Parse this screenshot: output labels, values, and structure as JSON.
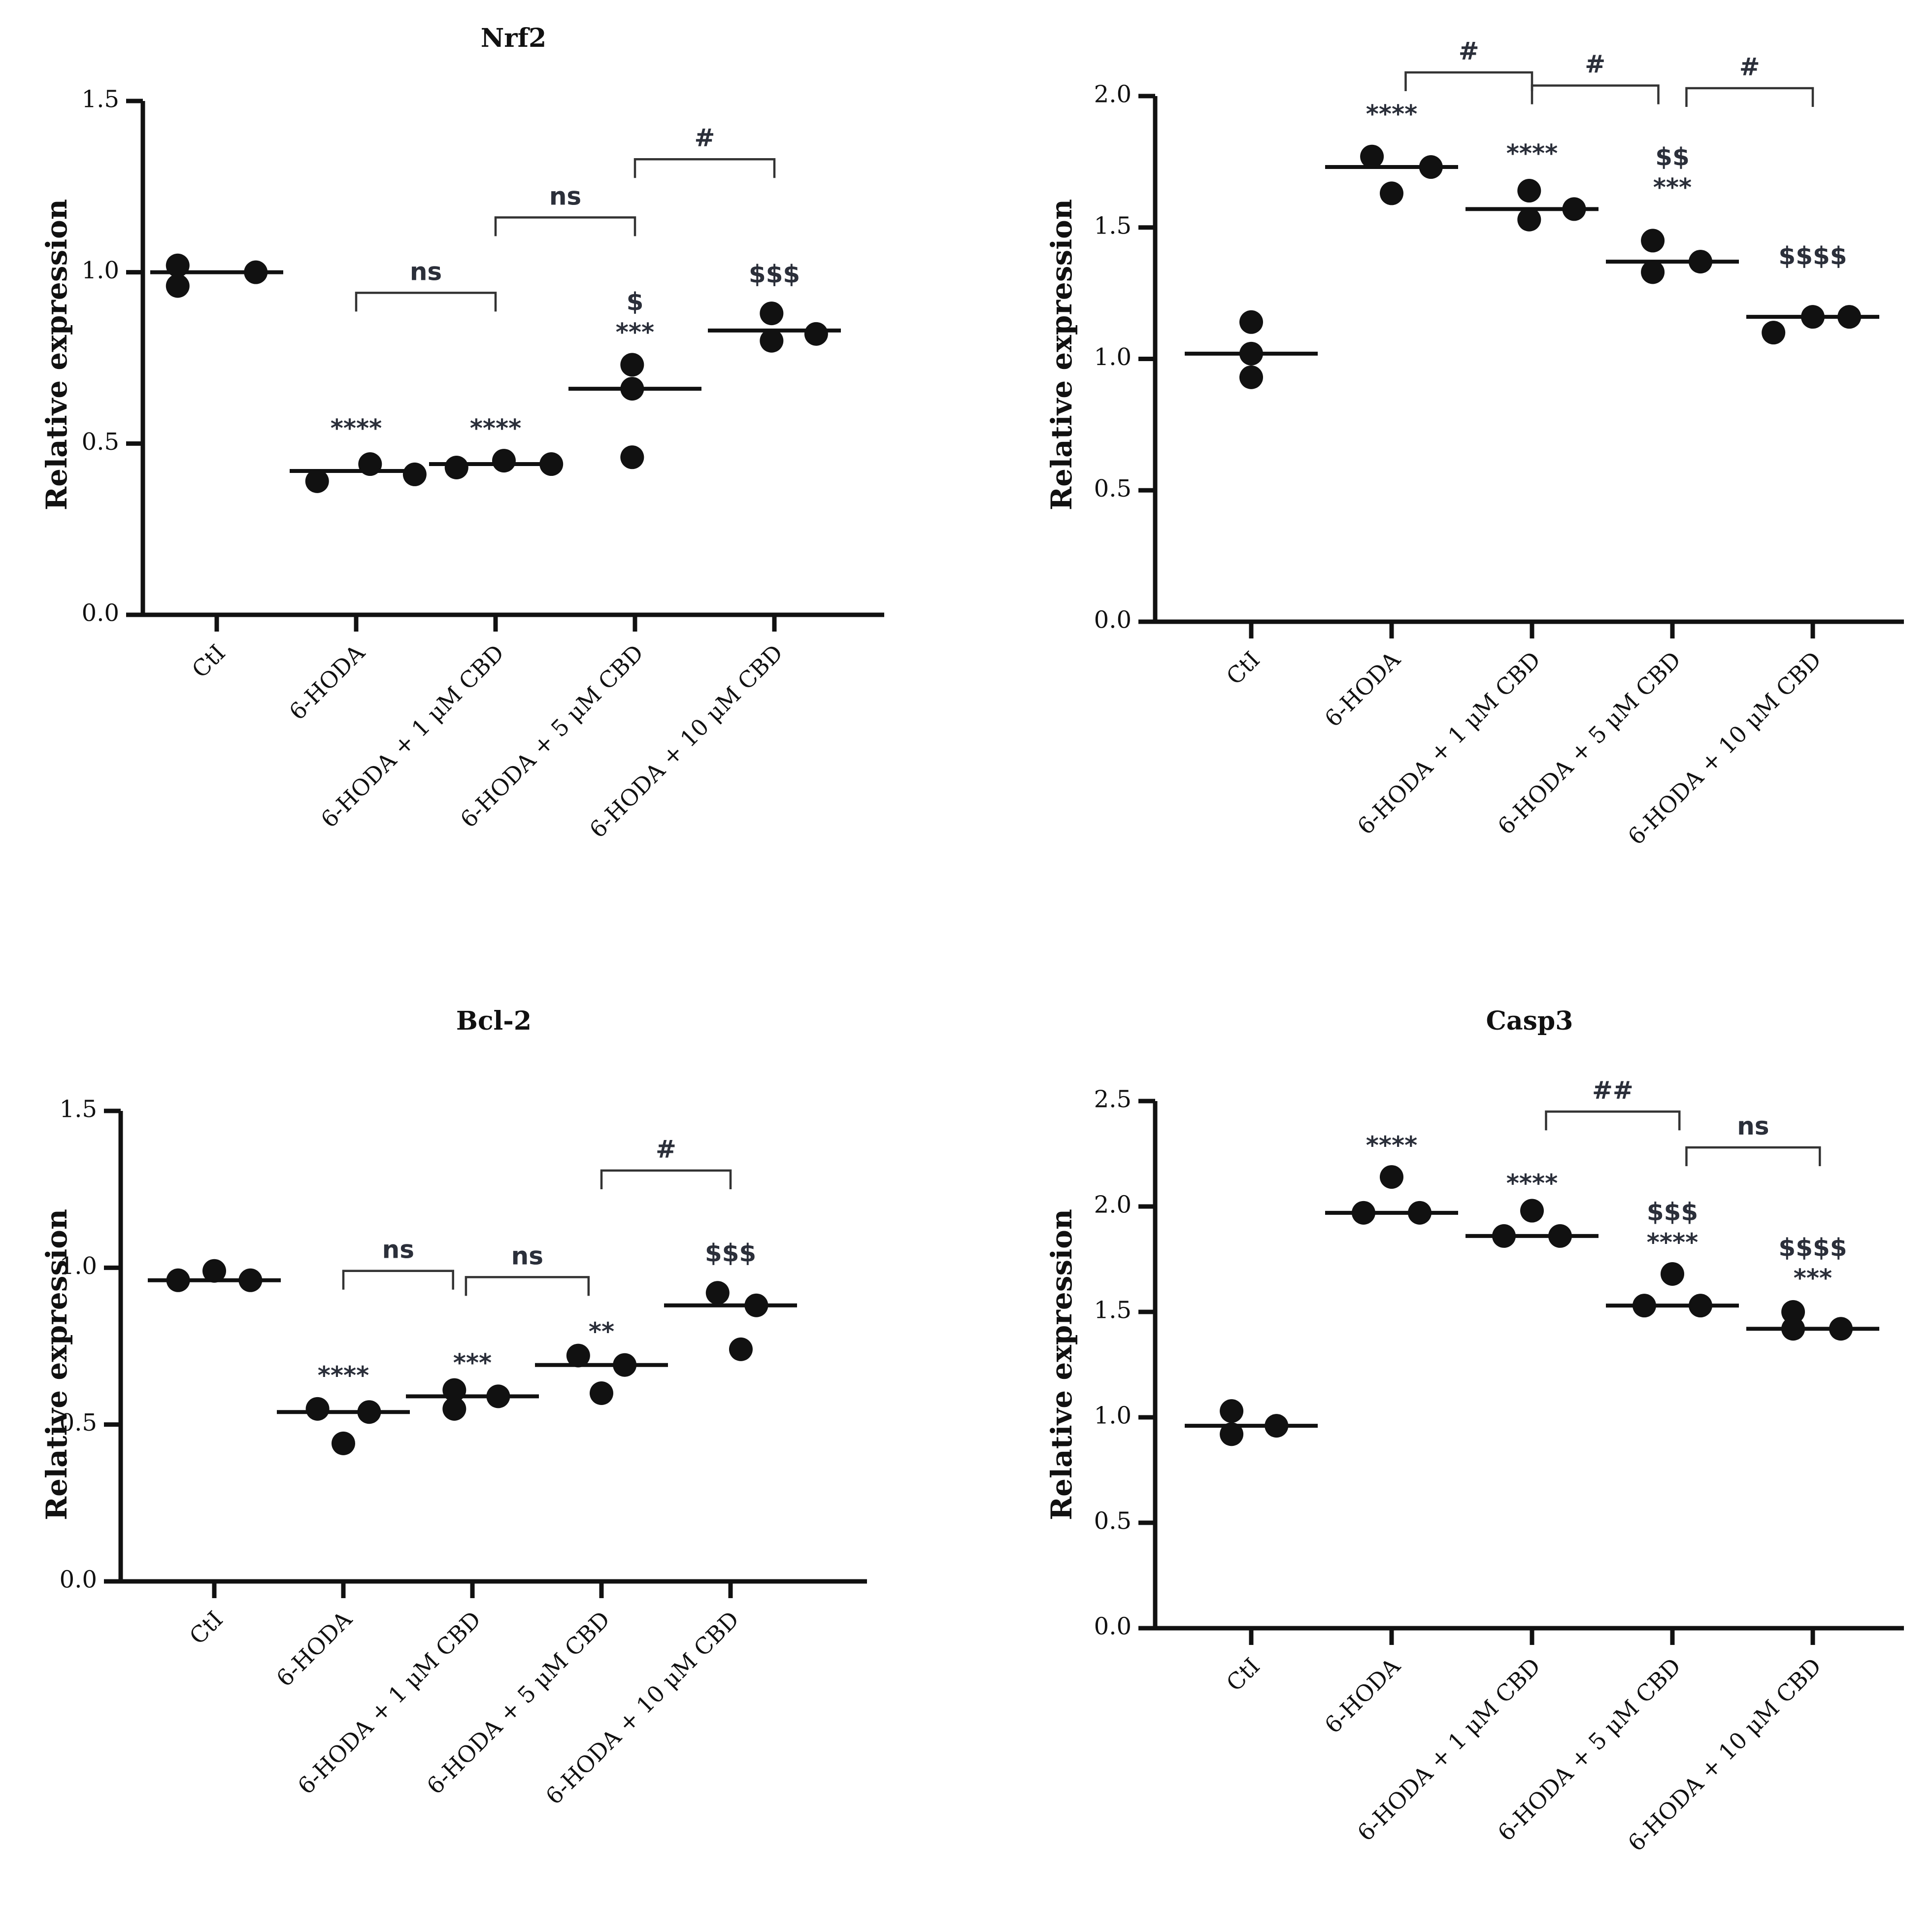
{
  "panels": [
    {
      "title": "Nrf2",
      "ylabel": "Relative expression",
      "yticks": [
        "0.0",
        "0.5",
        "1.0",
        "1.5"
      ],
      "ylim": [
        0,
        1.5
      ],
      "categories": [
        "CtI",
        "6-HODA",
        "6-HODA + 1 μM CBD",
        "6-HODA + 5 μM CBD",
        "6-HODA + 10 μM CBD"
      ],
      "means": [
        1.0,
        0.42,
        0.44,
        0.66,
        0.83
      ],
      "points": [
        [
          0.96,
          1.02,
          1.0
        ],
        [
          0.39,
          0.44,
          0.41
        ],
        [
          0.43,
          0.45,
          0.44
        ],
        [
          0.46,
          0.73,
          0.66
        ],
        [
          0.8,
          0.88,
          0.82
        ]
      ],
      "point_offsets": [
        [
          -0.28,
          -0.28,
          0.28
        ],
        [
          -0.28,
          0.1,
          0.42
        ],
        [
          -0.28,
          0.06,
          0.4
        ],
        [
          -0.02,
          -0.02,
          -0.02
        ],
        [
          -0.02,
          -0.02,
          0.3
        ]
      ],
      "annotations": [
        {
          "cat": 1,
          "lines": [
            "****"
          ],
          "y": 0.52
        },
        {
          "cat": 2,
          "lines": [
            "****"
          ],
          "y": 0.52
        },
        {
          "cat": 3,
          "lines": [
            "$",
            "***"
          ],
          "y": 0.8
        },
        {
          "cat": 4,
          "lines": [
            "$$$"
          ],
          "y": 0.97
        }
      ],
      "brackets": [
        {
          "from": 1,
          "to": 2,
          "y": 0.94,
          "label": "ns"
        },
        {
          "from": 2,
          "to": 3,
          "y": 1.16,
          "label": "ns"
        },
        {
          "from": 3,
          "to": 4,
          "y": 1.33,
          "label": "#"
        }
      ]
    },
    {
      "title": "",
      "ylabel": "Relative expression",
      "yticks": [
        "0.0",
        "0.5",
        "1.0",
        "1.5",
        "2.0"
      ],
      "ylim": [
        0,
        2.0
      ],
      "categories": [
        "CtI",
        "6-HODA",
        "6-HODA + 1 μM CBD",
        "6-HODA + 5 μM CBD",
        "6-HODA + 10 μM CBD"
      ],
      "means": [
        1.02,
        1.73,
        1.57,
        1.37,
        1.16
      ],
      "points": [
        [
          1.14,
          0.93,
          1.02
        ],
        [
          1.77,
          1.63,
          1.73
        ],
        [
          1.64,
          1.53,
          1.57
        ],
        [
          1.45,
          1.33,
          1.37
        ],
        [
          1.1,
          1.16,
          1.16
        ]
      ],
      "point_offsets": [
        [
          0.0,
          0.0,
          0.0
        ],
        [
          -0.14,
          0.0,
          0.28
        ],
        [
          -0.02,
          -0.02,
          0.3
        ],
        [
          -0.14,
          -0.14,
          0.2
        ],
        [
          -0.28,
          0.0,
          0.26
        ]
      ],
      "annotations": [
        {
          "cat": 1,
          "lines": [
            "****"
          ],
          "y": 1.9
        },
        {
          "cat": 2,
          "lines": [
            "****"
          ],
          "y": 1.75
        },
        {
          "cat": 3,
          "lines": [
            "$$",
            "***"
          ],
          "y": 1.62
        },
        {
          "cat": 4,
          "lines": [
            "$$$$"
          ],
          "y": 1.36
        }
      ],
      "brackets": [
        {
          "from": 1.1,
          "to": 2.0,
          "y": 2.09,
          "label": "#"
        },
        {
          "from": 2.0,
          "to": 2.9,
          "y": 2.04,
          "label": "#"
        },
        {
          "from": 3.1,
          "to": 4.0,
          "y": 2.03,
          "label": "#"
        }
      ]
    },
    {
      "title": "Bcl-2",
      "ylabel": "Relative expression",
      "yticks": [
        "0.0",
        "0.5",
        "1.0",
        "1.5"
      ],
      "ylim": [
        0,
        1.5
      ],
      "categories": [
        "CtI",
        "6-HODA",
        "6-HODA + 1 μM CBD",
        "6-HODA + 5 μM CBD",
        "6-HODA + 10 μM CBD"
      ],
      "means": [
        0.96,
        0.54,
        0.59,
        0.69,
        0.88
      ],
      "points": [
        [
          0.96,
          0.99,
          0.96
        ],
        [
          0.55,
          0.44,
          0.54
        ],
        [
          0.61,
          0.55,
          0.59
        ],
        [
          0.72,
          0.6,
          0.69
        ],
        [
          0.92,
          0.74,
          0.88
        ]
      ],
      "point_offsets": [
        [
          -0.28,
          0.0,
          0.28
        ],
        [
          -0.2,
          0.0,
          0.2
        ],
        [
          -0.14,
          -0.14,
          0.2
        ],
        [
          -0.18,
          0.0,
          0.18
        ],
        [
          -0.1,
          0.08,
          0.2
        ]
      ],
      "annotations": [
        {
          "cat": 1,
          "lines": [
            "****"
          ],
          "y": 0.63
        },
        {
          "cat": 2,
          "lines": [
            "***"
          ],
          "y": 0.67
        },
        {
          "cat": 3,
          "lines": [
            "**"
          ],
          "y": 0.77
        },
        {
          "cat": 4,
          "lines": [
            "$$$"
          ],
          "y": 1.02
        }
      ],
      "brackets": [
        {
          "from": 1.0,
          "to": 1.85,
          "y": 0.99,
          "label": "ns"
        },
        {
          "from": 1.95,
          "to": 2.9,
          "y": 0.97,
          "label": "ns"
        },
        {
          "from": 3.0,
          "to": 4.0,
          "y": 1.31,
          "label": "#"
        }
      ]
    },
    {
      "title": "Casp3",
      "ylabel": "Relative expression",
      "yticks": [
        "0.0",
        "0.5",
        "1.0",
        "1.5",
        "2.0",
        "2.5"
      ],
      "ylim": [
        0,
        2.5
      ],
      "categories": [
        "CtI",
        "6-HODA",
        "6-HODA + 1 μM CBD",
        "6-HODA + 5 μM CBD",
        "6-HODA + 10 μM CBD"
      ],
      "means": [
        0.96,
        1.97,
        1.86,
        1.53,
        1.42
      ],
      "points": [
        [
          1.03,
          0.92,
          0.96
        ],
        [
          2.14,
          1.97,
          1.97
        ],
        [
          1.98,
          1.86,
          1.86
        ],
        [
          1.68,
          1.53,
          1.53
        ],
        [
          1.5,
          1.42,
          1.42
        ]
      ],
      "point_offsets": [
        [
          -0.14,
          -0.14,
          0.18
        ],
        [
          0.0,
          -0.2,
          0.2
        ],
        [
          0.0,
          -0.2,
          0.2
        ],
        [
          0.0,
          -0.2,
          0.2
        ],
        [
          -0.14,
          -0.14,
          0.2
        ]
      ],
      "annotations": [
        {
          "cat": 1,
          "lines": [
            "****"
          ],
          "y": 2.25
        },
        {
          "cat": 2,
          "lines": [
            "****"
          ],
          "y": 2.07
        },
        {
          "cat": 3,
          "lines": [
            "$$$",
            "****"
          ],
          "y": 1.79
        },
        {
          "cat": 4,
          "lines": [
            "$$$$",
            "***"
          ],
          "y": 1.62
        }
      ],
      "brackets": [
        {
          "from": 2.1,
          "to": 3.05,
          "y": 2.45,
          "label": "##"
        },
        {
          "from": 3.1,
          "to": 4.05,
          "y": 2.28,
          "label": "ns"
        }
      ]
    }
  ],
  "chart_data": [
    {
      "type": "scatter",
      "title": "Nrf2",
      "xlabel": "",
      "ylabel": "Relative expression",
      "ylim": [
        0,
        1.5
      ],
      "categories": [
        "CtI",
        "6-HODA",
        "6-HODA + 1 μM CBD",
        "6-HODA + 5 μM CBD",
        "6-HODA + 10 μM CBD"
      ],
      "series": [
        {
          "name": "mean",
          "values": [
            1.0,
            0.42,
            0.44,
            0.66,
            0.83
          ]
        },
        {
          "name": "replicates",
          "values": [
            [
              0.96,
              1.02,
              1.0
            ],
            [
              0.39,
              0.44,
              0.41
            ],
            [
              0.43,
              0.45,
              0.44
            ],
            [
              0.46,
              0.73,
              0.66
            ],
            [
              0.8,
              0.88,
              0.82
            ]
          ]
        }
      ],
      "annotations": [
        "****",
        "****",
        "$ ***",
        "$$$",
        "ns",
        "ns",
        "#"
      ]
    },
    {
      "type": "scatter",
      "title": "",
      "xlabel": "",
      "ylabel": "Relative expression",
      "ylim": [
        0,
        2.0
      ],
      "categories": [
        "CtI",
        "6-HODA",
        "6-HODA + 1 μM CBD",
        "6-HODA + 5 μM CBD",
        "6-HODA + 10 μM CBD"
      ],
      "series": [
        {
          "name": "mean",
          "values": [
            1.02,
            1.73,
            1.57,
            1.37,
            1.16
          ]
        },
        {
          "name": "replicates",
          "values": [
            [
              1.14,
              0.93,
              1.02
            ],
            [
              1.77,
              1.63,
              1.73
            ],
            [
              1.64,
              1.53,
              1.57
            ],
            [
              1.45,
              1.33,
              1.37
            ],
            [
              1.1,
              1.16,
              1.16
            ]
          ]
        }
      ],
      "annotations": [
        "****",
        "****",
        "$$ ***",
        "$$$$",
        "#",
        "#",
        "#"
      ]
    },
    {
      "type": "scatter",
      "title": "Bcl-2",
      "xlabel": "",
      "ylabel": "Relative expression",
      "ylim": [
        0,
        1.5
      ],
      "categories": [
        "CtI",
        "6-HODA",
        "6-HODA + 1 μM CBD",
        "6-HODA + 5 μM CBD",
        "6-HODA + 10 μM CBD"
      ],
      "series": [
        {
          "name": "mean",
          "values": [
            0.96,
            0.54,
            0.59,
            0.69,
            0.88
          ]
        },
        {
          "name": "replicates",
          "values": [
            [
              0.96,
              0.99,
              0.96
            ],
            [
              0.55,
              0.44,
              0.54
            ],
            [
              0.61,
              0.55,
              0.59
            ],
            [
              0.72,
              0.6,
              0.69
            ],
            [
              0.92,
              0.74,
              0.88
            ]
          ]
        }
      ],
      "annotations": [
        "****",
        "***",
        "**",
        "$$$",
        "ns",
        "ns",
        "#"
      ]
    },
    {
      "type": "scatter",
      "title": "Casp3",
      "xlabel": "",
      "ylabel": "Relative expression",
      "ylim": [
        0,
        2.5
      ],
      "categories": [
        "CtI",
        "6-HODA",
        "6-HODA + 1 μM CBD",
        "6-HODA + 5 μM CBD",
        "6-HODA + 10 μM CBD"
      ],
      "series": [
        {
          "name": "mean",
          "values": [
            0.96,
            1.97,
            1.86,
            1.53,
            1.42
          ]
        },
        {
          "name": "replicates",
          "values": [
            [
              1.03,
              0.92,
              0.96
            ],
            [
              2.14,
              1.97,
              1.97
            ],
            [
              1.98,
              1.86,
              1.86
            ],
            [
              1.68,
              1.53,
              1.53
            ],
            [
              1.5,
              1.42,
              1.42
            ]
          ]
        }
      ],
      "annotations": [
        "****",
        "****",
        "$$$ ****",
        "$$$$ ***",
        "##",
        "ns"
      ]
    }
  ]
}
